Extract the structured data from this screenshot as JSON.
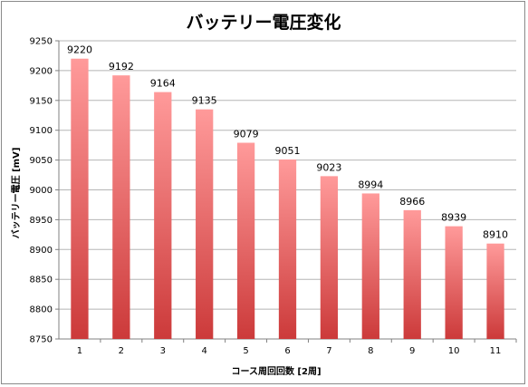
{
  "chart_data": {
    "type": "bar",
    "title": "バッテリー電圧変化",
    "xlabel": "コース周回回数 [2周]",
    "ylabel": "バッテリー電圧 [mV]",
    "ylim": [
      8750,
      9250
    ],
    "ytick_step": 50,
    "grid": true,
    "legend": "none",
    "categories": [
      "1",
      "2",
      "3",
      "4",
      "5",
      "6",
      "7",
      "8",
      "9",
      "10",
      "11"
    ],
    "values": [
      9220,
      9192,
      9164,
      9135,
      9079,
      9051,
      9023,
      8994,
      8966,
      8939,
      8910
    ],
    "bar_color_top": "#ff9a9a",
    "bar_color_bottom": "#cc3a3a",
    "gridline_color": "#b5b5b5"
  }
}
